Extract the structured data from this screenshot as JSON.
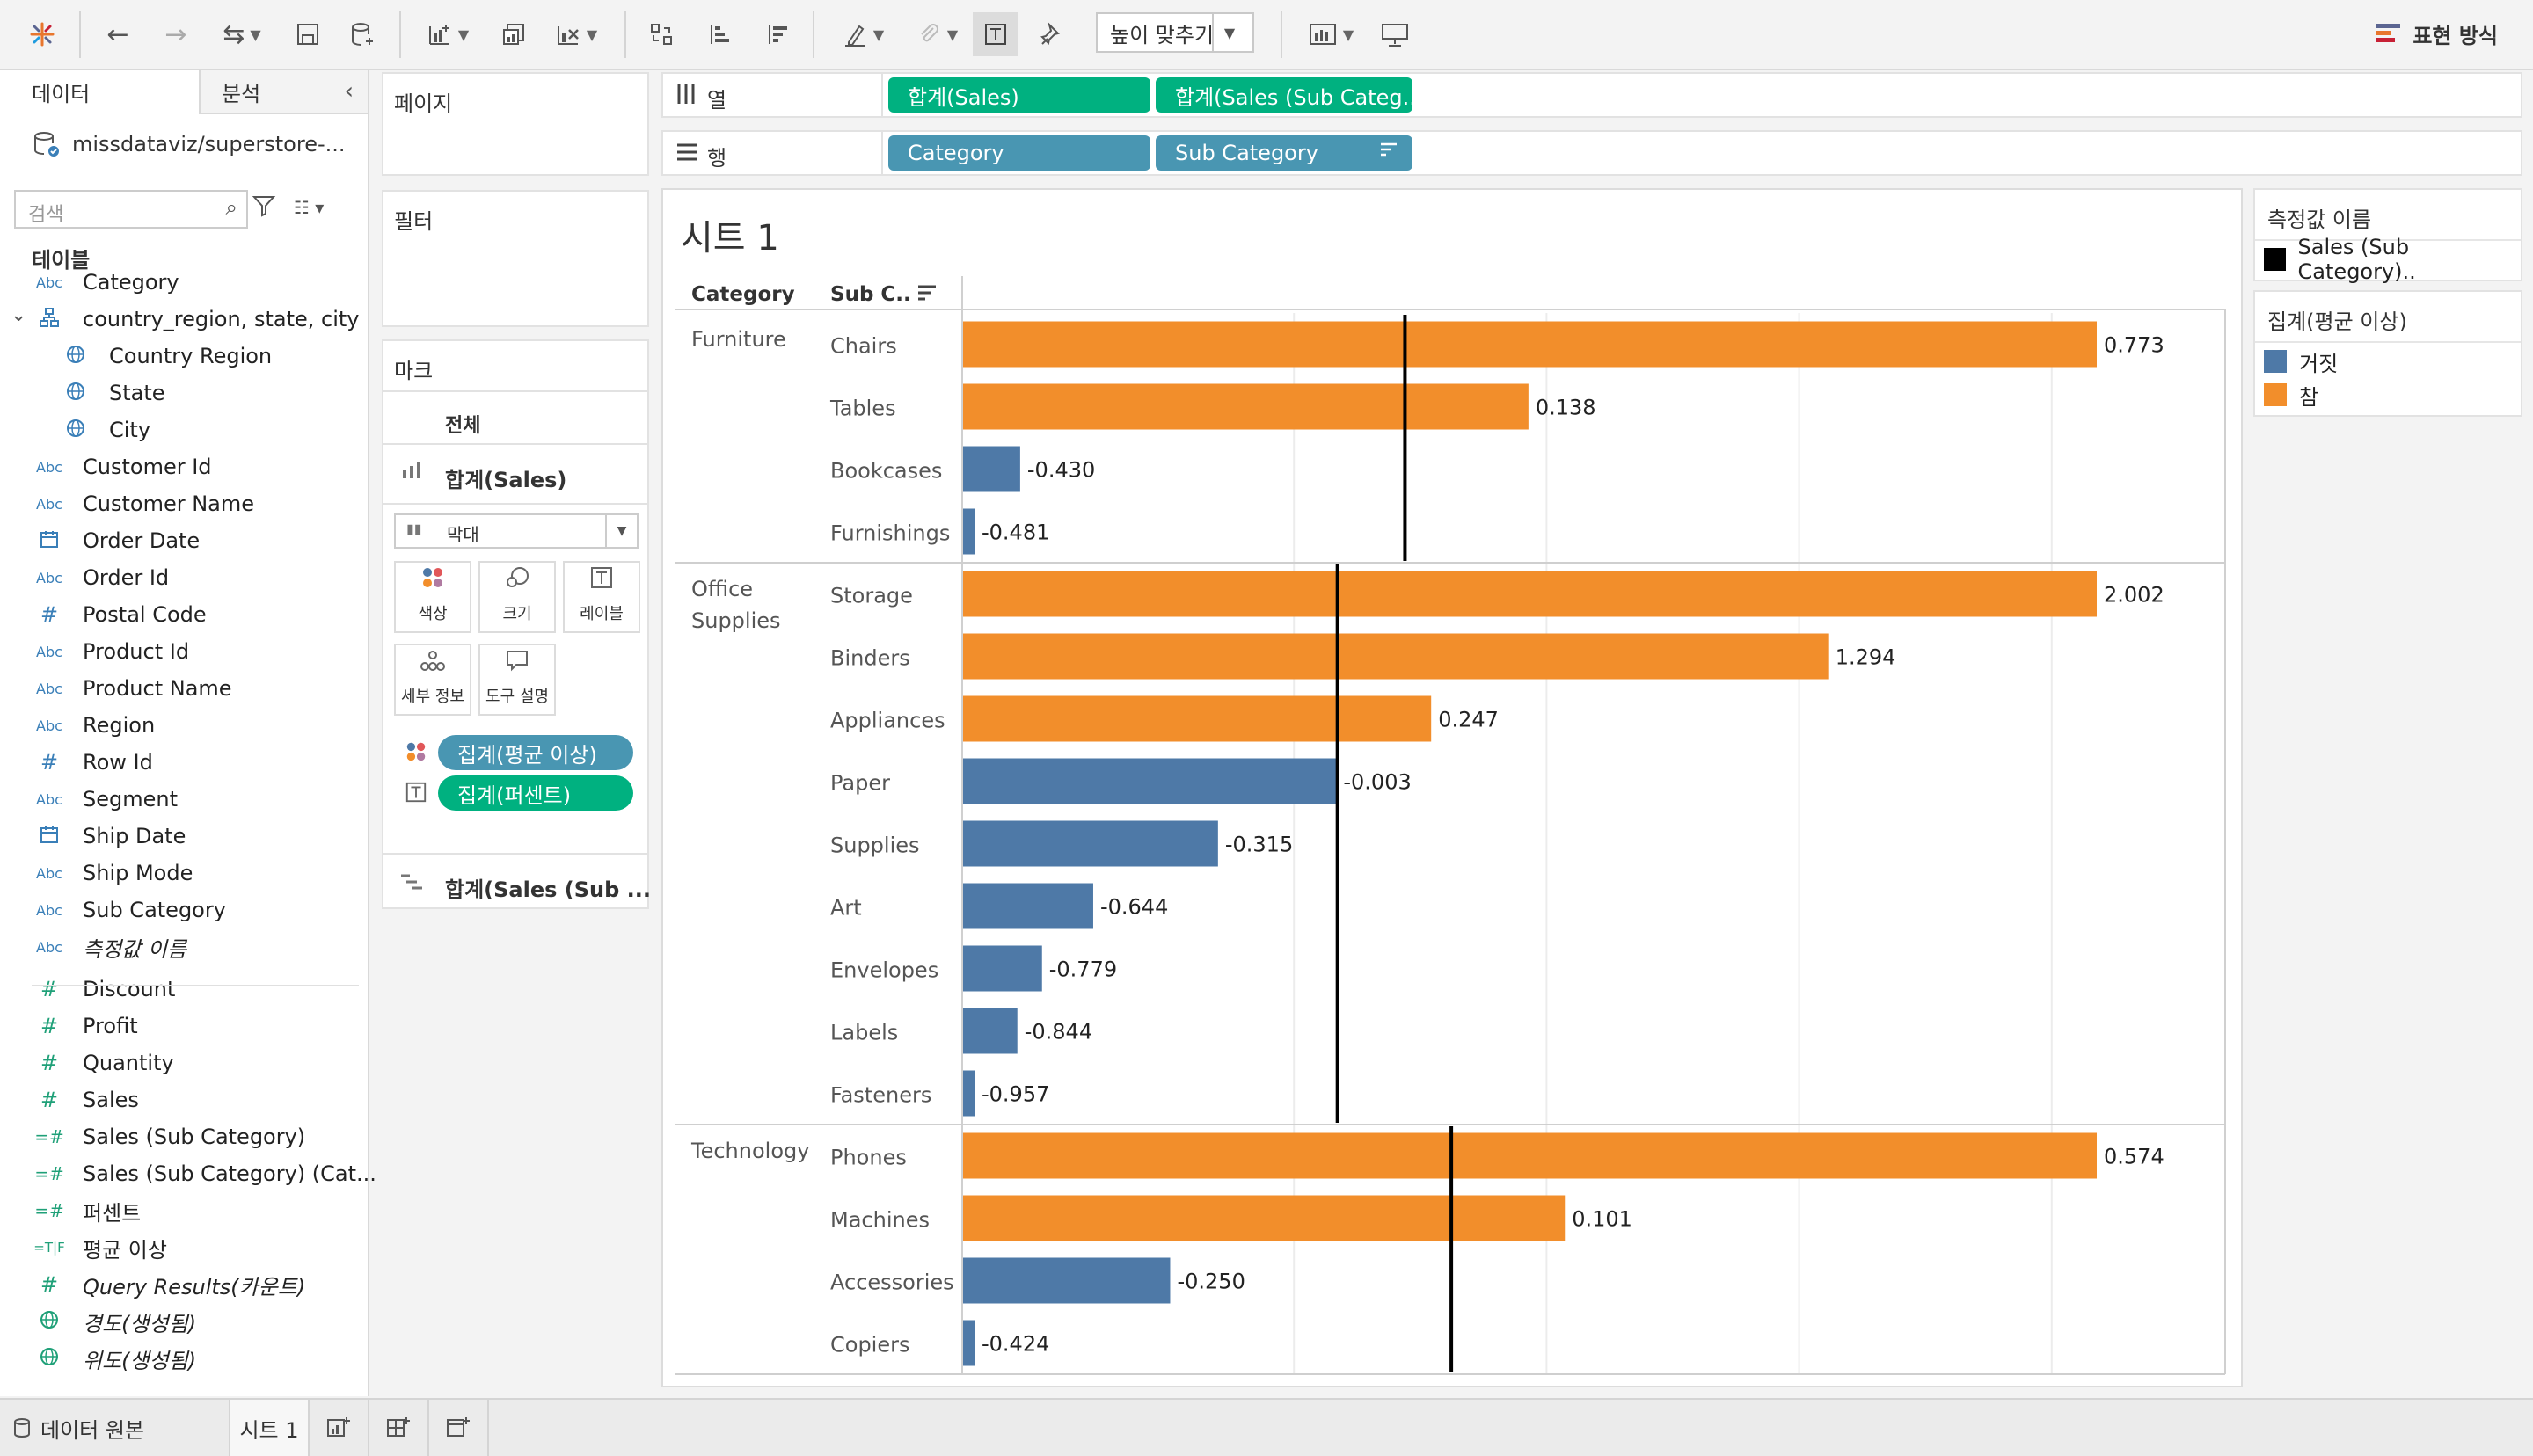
{
  "toolbar": {
    "fit_label": "높이 맞추기",
    "show_me_label": "표현 방식"
  },
  "data_pane": {
    "tab_data": "데이터",
    "tab_analysis": "분석",
    "datasource": "missdataviz/superstore-...",
    "search_placeholder": "검색",
    "tables_heading": "테이블",
    "fields": [
      {
        "label": "Category",
        "type": "Abc",
        "kind": "dim"
      },
      {
        "label": "country_region, state, city",
        "type": "hier",
        "kind": "dim"
      },
      {
        "label": "Country Region",
        "type": "globe",
        "kind": "dim",
        "indent": true
      },
      {
        "label": "State",
        "type": "globe",
        "kind": "dim",
        "indent": true
      },
      {
        "label": "City",
        "type": "globe",
        "kind": "dim",
        "indent": true
      },
      {
        "label": "Customer Id",
        "type": "Abc",
        "kind": "dim"
      },
      {
        "label": "Customer Name",
        "type": "Abc",
        "kind": "dim"
      },
      {
        "label": "Order Date",
        "type": "date",
        "kind": "dim"
      },
      {
        "label": "Order Id",
        "type": "Abc",
        "kind": "dim"
      },
      {
        "label": "Postal Code",
        "type": "#",
        "kind": "dim"
      },
      {
        "label": "Product Id",
        "type": "Abc",
        "kind": "dim"
      },
      {
        "label": "Product Name",
        "type": "Abc",
        "kind": "dim"
      },
      {
        "label": "Region",
        "type": "Abc",
        "kind": "dim"
      },
      {
        "label": "Row Id",
        "type": "#",
        "kind": "dim"
      },
      {
        "label": "Segment",
        "type": "Abc",
        "kind": "dim"
      },
      {
        "label": "Ship Date",
        "type": "date",
        "kind": "dim"
      },
      {
        "label": "Ship Mode",
        "type": "Abc",
        "kind": "dim"
      },
      {
        "label": "Sub Category",
        "type": "Abc",
        "kind": "dim"
      },
      {
        "label": "측정값 이름",
        "type": "Abc",
        "kind": "dim",
        "italic": true
      },
      {
        "label": "Discount",
        "type": "#",
        "kind": "measure"
      },
      {
        "label": "Profit",
        "type": "#",
        "kind": "measure"
      },
      {
        "label": "Quantity",
        "type": "#",
        "kind": "measure"
      },
      {
        "label": "Sales",
        "type": "#",
        "kind": "measure"
      },
      {
        "label": "Sales (Sub Category)",
        "type": "=#",
        "kind": "measure"
      },
      {
        "label": "Sales (Sub Category) (Cat...",
        "type": "=#",
        "kind": "measure"
      },
      {
        "label": "퍼센트",
        "type": "=#",
        "kind": "measure"
      },
      {
        "label": "평균 이상",
        "type": "=T|F",
        "kind": "measure"
      },
      {
        "label": "Query Results(카운트)",
        "type": "#",
        "kind": "measure",
        "italic": true
      },
      {
        "label": "경도(생성됨)",
        "type": "globe",
        "kind": "measure",
        "italic": true
      },
      {
        "label": "위도(생성됨)",
        "type": "globe",
        "kind": "measure",
        "italic": true
      }
    ]
  },
  "shelves": {
    "pages_label": "페이지",
    "filters_label": "필터",
    "marks_label": "마크",
    "marks_all": "전체",
    "marks_sum_sales": "합계(Sales)",
    "mark_type": "막대",
    "mark_buttons": [
      "색상",
      "크기",
      "레이블",
      "세부 정보",
      "도구 설명"
    ],
    "mark_pill_color": "집계(평균 이상)",
    "mark_pill_label": "집계(퍼센트)",
    "marks_sum_sub": "합계(Sales (Sub ...",
    "columns_label": "열",
    "rows_label": "행",
    "col_pills": [
      "합계(Sales)",
      "합계(Sales (Sub Categ.."
    ],
    "row_pills": [
      "Category",
      "Sub Category"
    ]
  },
  "view": {
    "sheet_title": "시트 1",
    "header_category": "Category",
    "header_subcategory": "Sub C.."
  },
  "legends": {
    "measure_names_title": "측정값 이름",
    "measure_names_item": "Sales (Sub Category)..",
    "above_avg_title": "집계(평균 이상)",
    "above_avg_items": [
      {
        "label": "거짓",
        "color": "#4e79a7"
      },
      {
        "label": "참",
        "color": "#f28e2b"
      }
    ]
  },
  "bottom_bar": {
    "data_source_tab": "데이터 원본",
    "sheet_tab": "시트 1"
  },
  "chart_data": {
    "type": "bar",
    "colors": {
      "true": "#f28e2b",
      "false": "#4e79a7",
      "reference_line": "#000000"
    },
    "groups": [
      {
        "category": "Furniture",
        "items": [
          {
            "sub": "Chairs",
            "value": 0.773,
            "label": "0.773",
            "above": true
          },
          {
            "sub": "Tables",
            "value": 0.138,
            "label": "0.138",
            "above": true
          },
          {
            "sub": "Bookcases",
            "value": -0.43,
            "label": "-0.430",
            "above": false
          },
          {
            "sub": "Furnishings",
            "value": -0.481,
            "label": "-0.481",
            "above": false
          }
        ]
      },
      {
        "category": "Office Supplies",
        "items": [
          {
            "sub": "Storage",
            "value": 2.002,
            "label": "2.002",
            "above": true
          },
          {
            "sub": "Binders",
            "value": 1.294,
            "label": "1.294",
            "above": true
          },
          {
            "sub": "Appliances",
            "value": 0.247,
            "label": "0.247",
            "above": true
          },
          {
            "sub": "Paper",
            "value": -0.003,
            "label": "-0.003",
            "above": false
          },
          {
            "sub": "Supplies",
            "value": -0.315,
            "label": "-0.315",
            "above": false
          },
          {
            "sub": "Art",
            "value": -0.644,
            "label": "-0.644",
            "above": false
          },
          {
            "sub": "Envelopes",
            "value": -0.779,
            "label": "-0.779",
            "above": false
          },
          {
            "sub": "Labels",
            "value": -0.844,
            "label": "-0.844",
            "above": false
          },
          {
            "sub": "Fasteners",
            "value": -0.957,
            "label": "-0.957",
            "above": false
          }
        ]
      },
      {
        "category": "Technology",
        "items": [
          {
            "sub": "Phones",
            "value": 0.574,
            "label": "0.574",
            "above": true
          },
          {
            "sub": "Machines",
            "value": 0.101,
            "label": "0.101",
            "above": true
          },
          {
            "sub": "Accessories",
            "value": -0.25,
            "label": "-0.250",
            "above": false
          },
          {
            "sub": "Copiers",
            "value": -0.424,
            "label": "-0.424",
            "above": false
          }
        ]
      }
    ]
  }
}
